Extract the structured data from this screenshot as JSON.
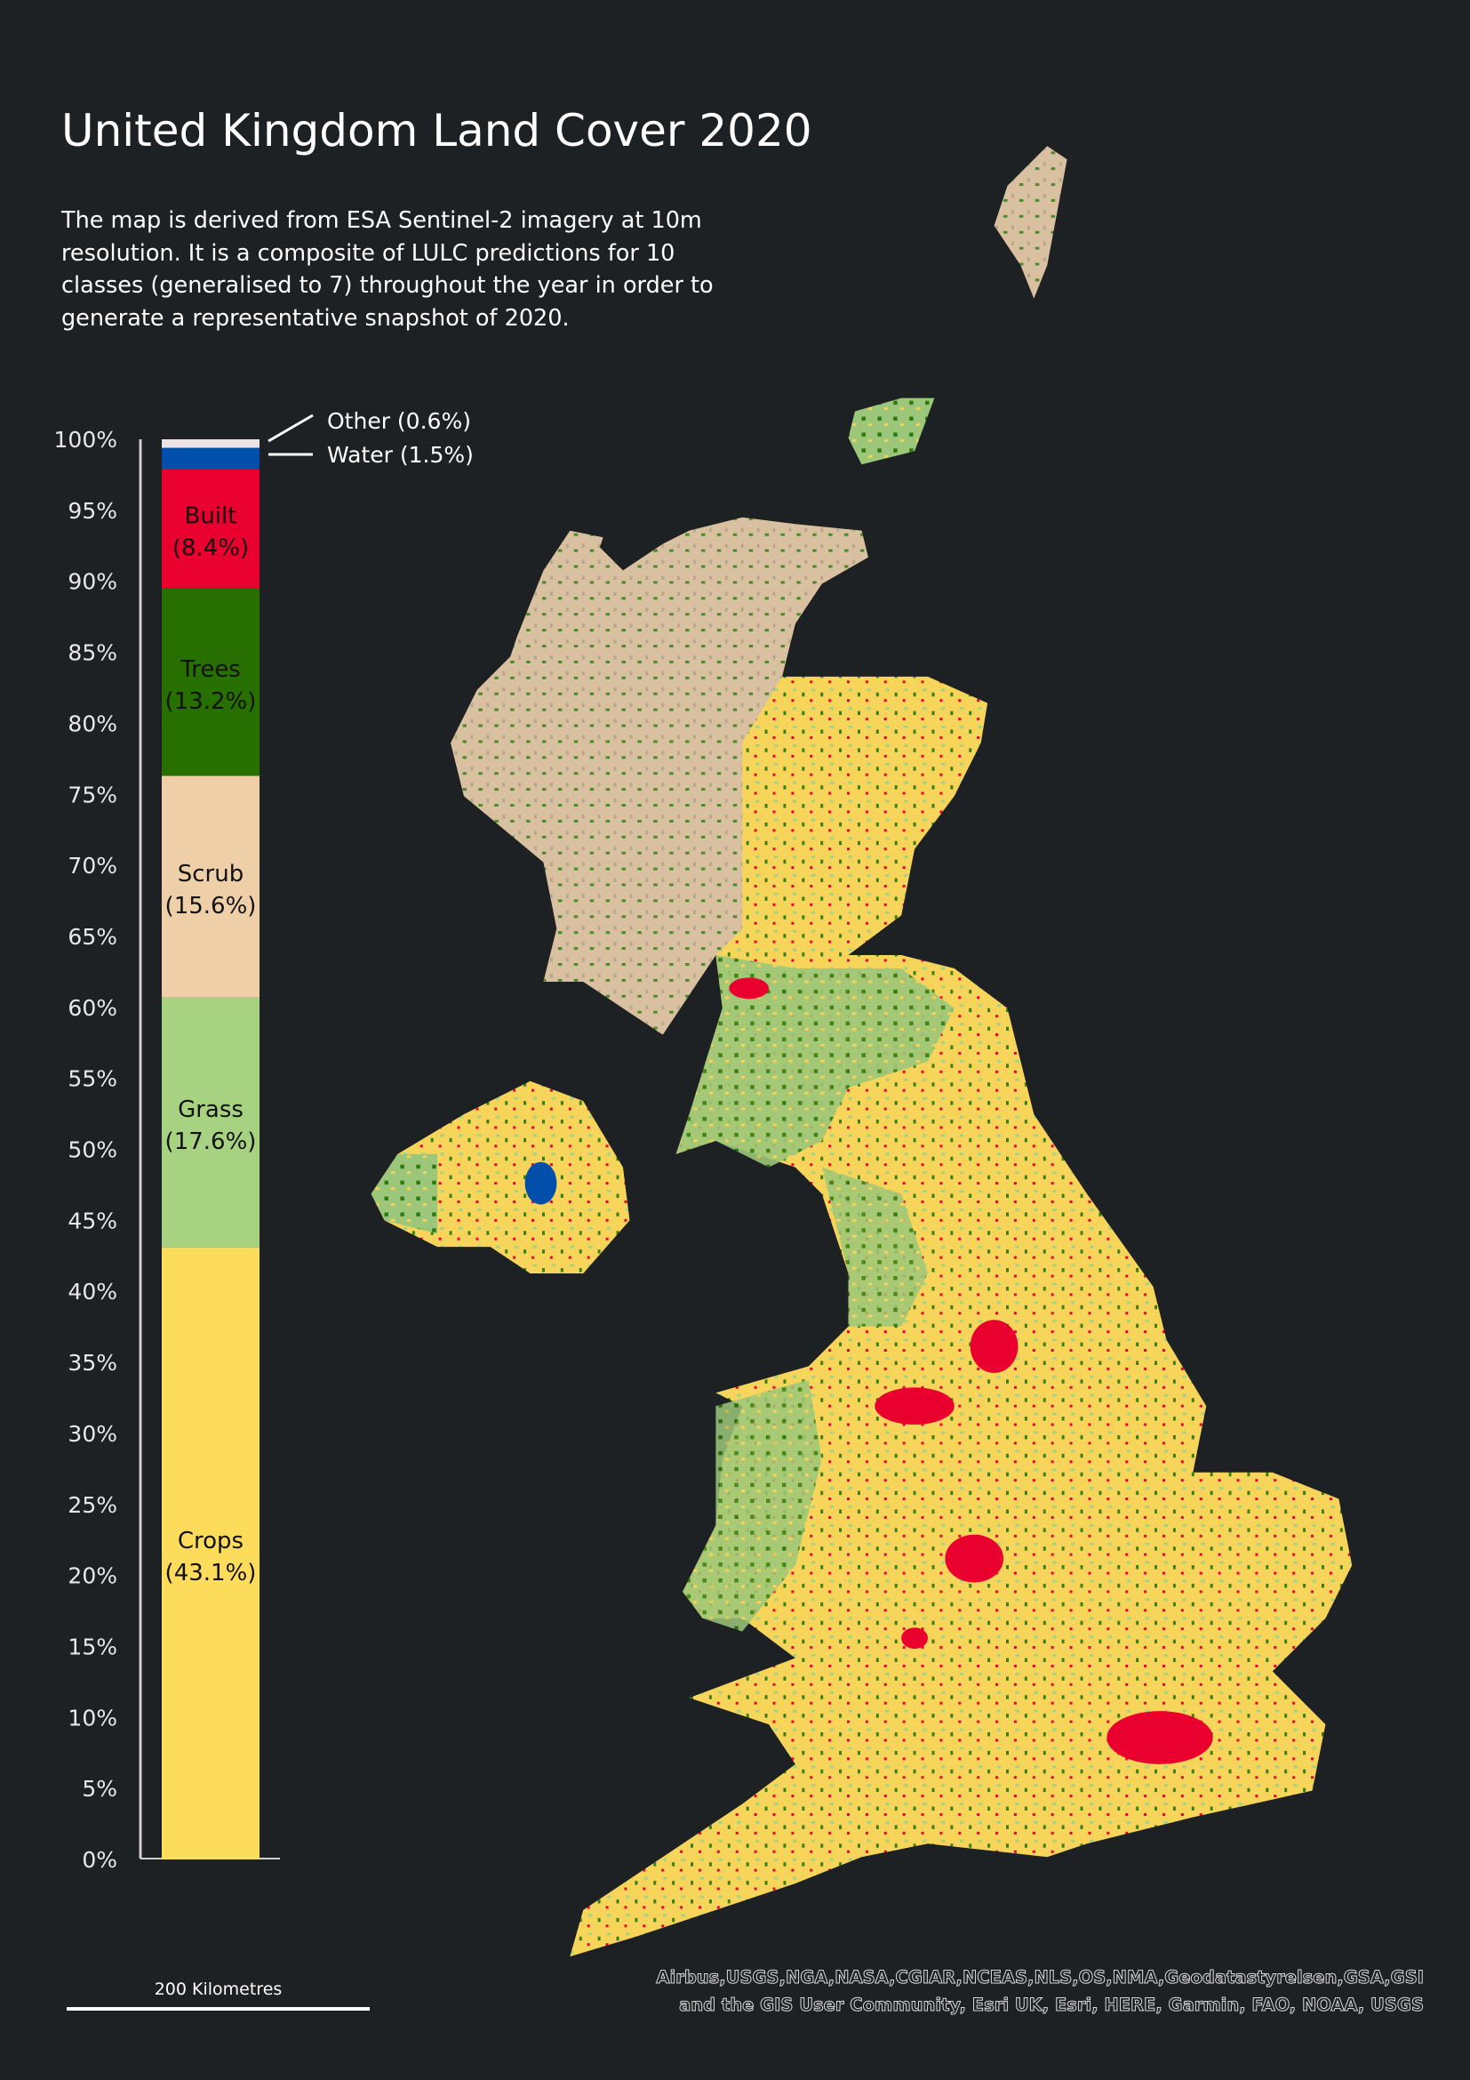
{
  "title": "United Kingdom Land Cover 2020",
  "description": [
    "The map is derived from ESA Sentinel-2 imagery at 10m",
    "resolution. It is a composite of LULC predictions for 10",
    "classes (generalised to 7) throughout the year in order to",
    "generate a representative snapshot of 2020."
  ],
  "chart_data": {
    "type": "bar",
    "stacked": true,
    "title": "",
    "ylabel": "",
    "ylim": [
      0,
      100
    ],
    "yticks": [
      "0%",
      "5%",
      "10%",
      "15%",
      "20%",
      "25%",
      "30%",
      "35%",
      "40%",
      "45%",
      "50%",
      "55%",
      "60%",
      "65%",
      "70%",
      "75%",
      "80%",
      "85%",
      "90%",
      "95%",
      "100%"
    ],
    "segments": [
      {
        "name": "Crops",
        "value": 43.1,
        "label": "(43.1%)",
        "color": "#fddc5c"
      },
      {
        "name": "Grass",
        "value": 17.6,
        "label": "(17.6%)",
        "color": "#a7d282"
      },
      {
        "name": "Scrub",
        "value": 15.6,
        "label": "(15.6%)",
        "color": "#efcfa8"
      },
      {
        "name": "Trees",
        "value": 13.2,
        "label": "(13.2%)",
        "color": "#277000"
      },
      {
        "name": "Built",
        "value": 8.4,
        "label": "(8.4%)",
        "color": "#ea002f"
      },
      {
        "name": "Water",
        "value": 1.5,
        "label": "Water (1.5%)",
        "color": "#0050ab"
      },
      {
        "name": "Other",
        "value": 0.6,
        "label": "Other (0.6%)",
        "color": "#ece4e4"
      }
    ]
  },
  "scale": {
    "label": "200 Kilometres"
  },
  "attribution": [
    "Airbus,USGS,NGA,NASA,CGIAR,NCEAS,NLS,OS,NMA,Geodatastyrelsen,GSA,GSI",
    "and the GIS User Community, Esri UK, Esri, HERE, Garmin, FAO, NOAA, USGS"
  ],
  "colors": {
    "background": "#1e2124"
  }
}
